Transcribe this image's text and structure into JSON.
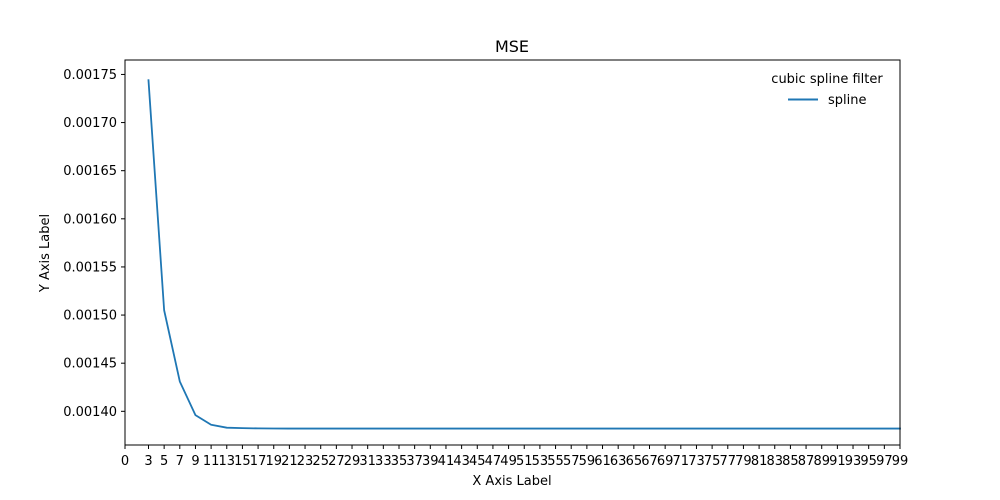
{
  "chart_data": {
    "type": "line",
    "title": "MSE",
    "xlabel": "X Axis Label",
    "ylabel": "Y Axis Label",
    "xlim": [
      0,
      99
    ],
    "ylim": [
      0.001365,
      0.001765
    ],
    "x_ticks": [
      0,
      3,
      5,
      7,
      9,
      11,
      13,
      15,
      17,
      19,
      21,
      23,
      25,
      27,
      29,
      31,
      33,
      35,
      37,
      39,
      41,
      43,
      45,
      47,
      49,
      51,
      53,
      55,
      57,
      59,
      61,
      63,
      65,
      67,
      69,
      71,
      73,
      75,
      77,
      79,
      81,
      83,
      85,
      87,
      89,
      91,
      93,
      95,
      97,
      99
    ],
    "y_ticks": [
      0.0014,
      0.00145,
      0.0015,
      0.00155,
      0.0016,
      0.00165,
      0.0017,
      0.00175
    ],
    "y_tick_labels": [
      "0.00140",
      "0.00145",
      "0.00150",
      "0.00155",
      "0.00160",
      "0.00165",
      "0.00170",
      "0.00175"
    ],
    "grid": false,
    "legend": {
      "title": "cubic spline filter",
      "placement": "top-right"
    },
    "series": [
      {
        "name": "spline",
        "color": "#1f77b4",
        "x": [
          3,
          5,
          7,
          9,
          11,
          13,
          15,
          17,
          19,
          21,
          23,
          25,
          27,
          29,
          31,
          33,
          35,
          37,
          39,
          41,
          43,
          45,
          47,
          49,
          51,
          53,
          55,
          57,
          59,
          61,
          63,
          65,
          67,
          69,
          71,
          73,
          75,
          77,
          79,
          81,
          83,
          85,
          87,
          89,
          91,
          93,
          95,
          97,
          99
        ],
        "y": [
          0.001744,
          0.001505,
          0.001431,
          0.001396,
          0.001386,
          0.001383,
          0.0013825,
          0.00138225,
          0.00138215,
          0.0013821,
          0.0013821,
          0.0013821,
          0.0013821,
          0.0013821,
          0.0013821,
          0.0013821,
          0.0013821,
          0.0013821,
          0.0013821,
          0.0013821,
          0.0013821,
          0.0013821,
          0.0013821,
          0.0013821,
          0.0013821,
          0.0013821,
          0.0013821,
          0.0013821,
          0.0013821,
          0.0013821,
          0.0013821,
          0.0013821,
          0.0013821,
          0.0013821,
          0.0013821,
          0.0013821,
          0.0013821,
          0.0013821,
          0.0013821,
          0.0013821,
          0.0013821,
          0.0013821,
          0.0013821,
          0.0013821,
          0.0013821,
          0.0013821,
          0.0013821,
          0.0013821,
          0.0013821
        ]
      }
    ]
  }
}
